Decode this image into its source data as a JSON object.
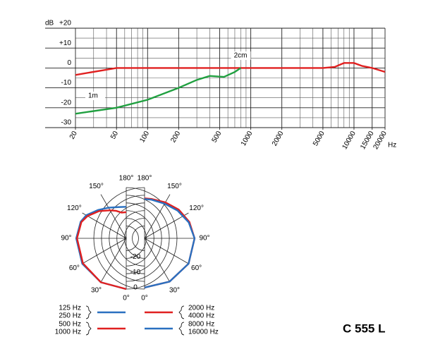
{
  "chart_data": [
    {
      "type": "line",
      "y_label": "dB",
      "x_label": "Hz",
      "xscale": "log",
      "xlim": [
        20,
        20000
      ],
      "ylim": [
        -30,
        20
      ],
      "xticks": [
        20,
        50,
        100,
        200,
        500,
        1000,
        2000,
        5000,
        10000,
        15000,
        20000
      ],
      "xminor": [
        30,
        40,
        60,
        70,
        80,
        90,
        300,
        400,
        600,
        700,
        800,
        900,
        3000,
        4000,
        6000,
        7000,
        8000,
        9000
      ],
      "yticks": [
        -30,
        -20,
        -10,
        0,
        {
          "value": 10,
          "label": "+10"
        },
        {
          "value": 20,
          "label": "+20"
        }
      ],
      "yminor": [
        -25,
        -15,
        -5,
        5,
        15
      ],
      "grid": true,
      "series": [
        {
          "name": "2cm",
          "color": "#e02020",
          "x": [
            20,
            50,
            100,
            200,
            500,
            1000,
            2000,
            5000,
            6500,
            8000,
            10000,
            12000,
            15000,
            20000
          ],
          "values": [
            -3.5,
            0,
            0,
            0,
            0,
            0,
            0,
            0,
            0.5,
            2.5,
            2.5,
            1,
            0,
            -2
          ]
        },
        {
          "name": "1m",
          "color": "#20a040",
          "x": [
            20,
            50,
            100,
            200,
            300,
            400,
            550,
            700,
            800
          ],
          "values": [
            -23,
            -20,
            -16,
            -10,
            -6,
            -4,
            -4.5,
            -2,
            0
          ]
        }
      ]
    },
    {
      "type": "polar",
      "rlim": [
        -33,
        0
      ],
      "rticks": [
        -20,
        -10,
        0
      ],
      "rgrid": [
        0,
        -5,
        -10,
        -15,
        -20,
        -25
      ],
      "angle_ticks": [
        {
          "value": 0,
          "label": "0°"
        },
        {
          "value": 30,
          "label": "30°"
        },
        {
          "value": 60,
          "label": "60°"
        },
        {
          "value": 90,
          "label": "90°"
        },
        {
          "value": 120,
          "label": "120°"
        },
        {
          "value": 150,
          "label": "150°"
        },
        {
          "value": 180,
          "label": "180°"
        }
      ],
      "series": [
        {
          "labels": [
            "125 Hz",
            "250 Hz"
          ],
          "side": "left",
          "color": "#2a70c0",
          "angles": [
            0,
            30,
            60,
            90,
            110,
            120,
            135,
            150,
            165,
            180
          ],
          "values": [
            0,
            0,
            0,
            -0.5,
            -1.5,
            -3,
            -7,
            -10,
            -12,
            -12.5
          ]
        },
        {
          "labels": [
            "500 Hz",
            "1000 Hz"
          ],
          "side": "left",
          "color": "#e02020",
          "angles": [
            0,
            30,
            60,
            90,
            110,
            120,
            135,
            150,
            160,
            170,
            180
          ],
          "values": [
            0,
            0,
            -0.5,
            -1,
            -2,
            -4,
            -8,
            -12,
            -14,
            -16,
            -16
          ]
        },
        {
          "labels": [
            "2000 Hz",
            "4000 Hz"
          ],
          "side": "right",
          "color": "#e02020",
          "angles": [
            0,
            30,
            60,
            90,
            110,
            130,
            150,
            170,
            180
          ],
          "values": [
            -1,
            -0.5,
            0,
            -0.5,
            -2,
            -4,
            -6,
            -7,
            -7
          ]
        },
        {
          "labels": [
            "8000 Hz",
            "16000 Hz"
          ],
          "side": "right",
          "color": "#2a70c0",
          "angles": [
            0,
            30,
            60,
            90,
            110,
            130,
            150,
            170,
            180
          ],
          "values": [
            -1,
            -0.5,
            0,
            -0.5,
            -2.5,
            -5,
            -7,
            -7.5,
            -7.5
          ]
        }
      ]
    }
  ],
  "product": "C 555 L"
}
